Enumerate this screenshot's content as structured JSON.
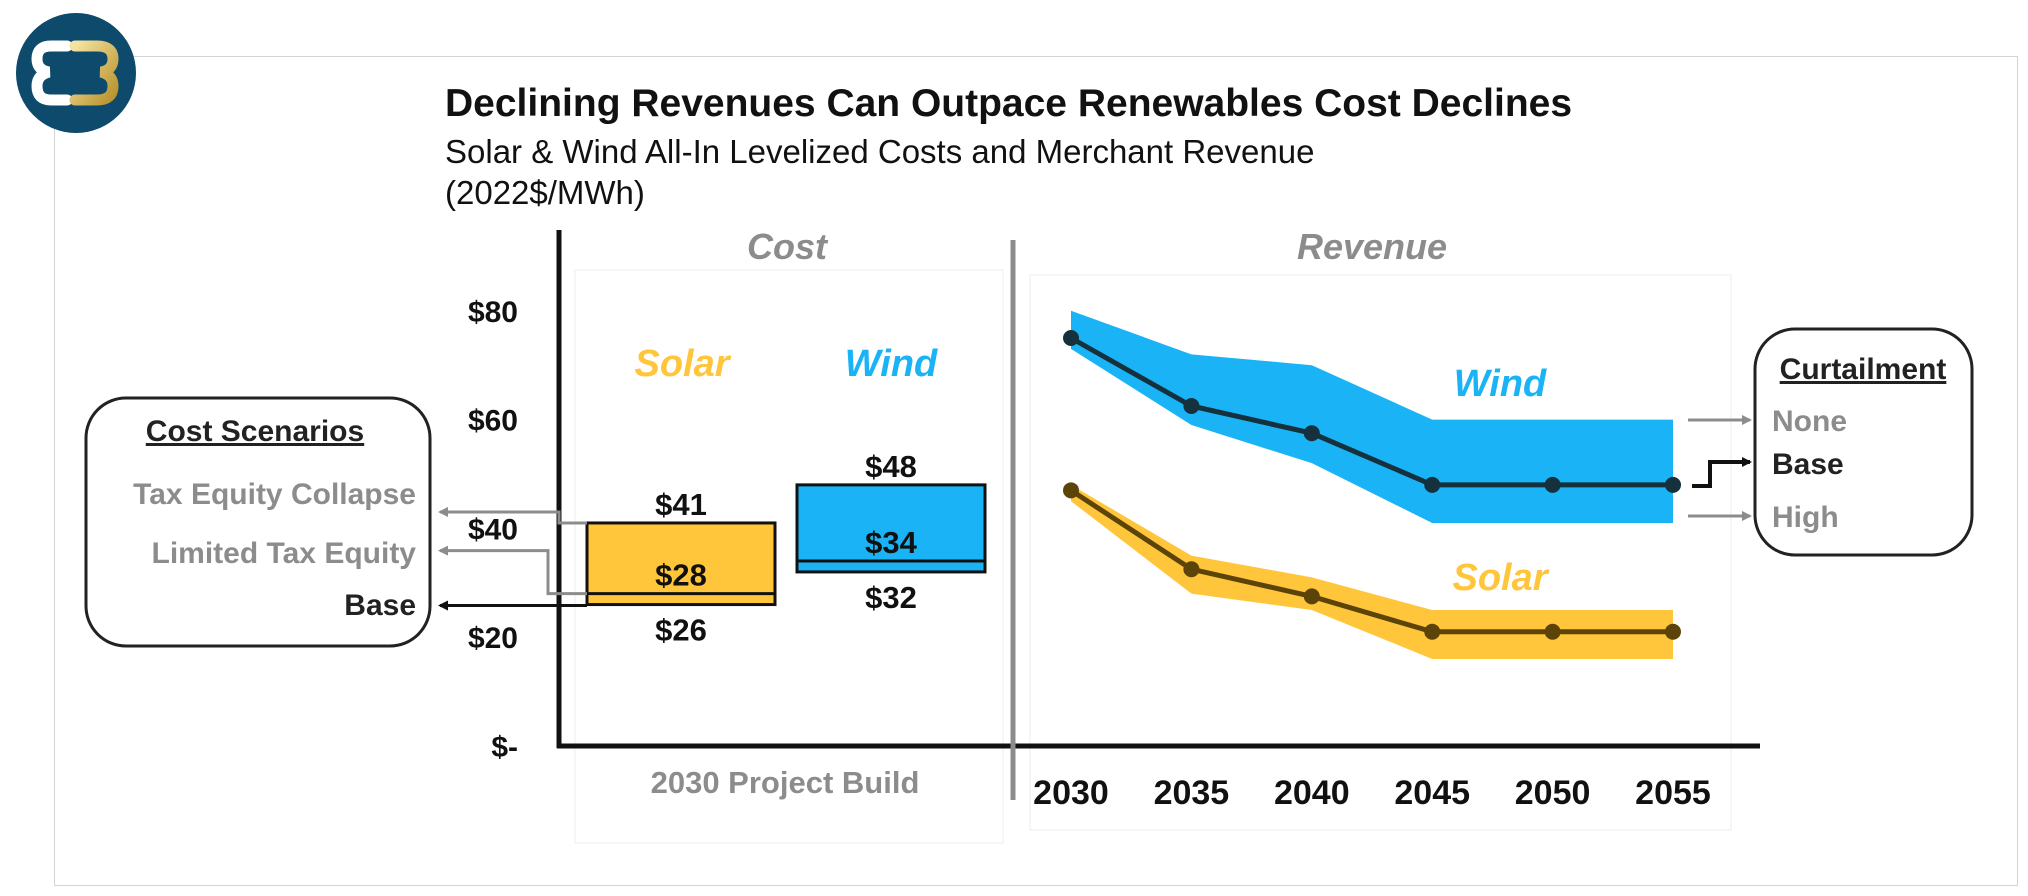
{
  "title": "Declining Revenues Can Outpace Renewables Cost Declines",
  "subtitle": "Solar & Wind All-In Levelized Costs and Merchant Revenue",
  "units": "(2022$/MWh)",
  "logo": {
    "icon": "company-logo-icon"
  },
  "colors": {
    "solar": "#FFC63B",
    "wind": "#1AB3F5",
    "solar_line": "#5C4308",
    "wind_line": "#15313D",
    "gray": "#8C8C8C"
  },
  "chart_data": [
    {
      "type": "bar",
      "panel_title": "Cost",
      "x_label": "2030 Project Build",
      "y_ticks": [
        "$-",
        "$20",
        "$40",
        "$60",
        "$80"
      ],
      "ylim": [
        0,
        80
      ],
      "series": [
        {
          "name": "Solar",
          "low": 26,
          "mid": 28,
          "high": 41,
          "labels": {
            "low": "$26",
            "mid": "$28",
            "high": "$41"
          }
        },
        {
          "name": "Wind",
          "low": 32,
          "mid": 34,
          "high": 48,
          "labels": {
            "low": "$32",
            "mid": "$34",
            "high": "$48"
          }
        }
      ]
    },
    {
      "type": "line",
      "panel_title": "Revenue",
      "x": [
        "2030",
        "2035",
        "2040",
        "2045",
        "2050",
        "2055"
      ],
      "ylim": [
        0,
        80
      ],
      "series": [
        {
          "name": "Wind",
          "values": [
            75,
            62.5,
            57.5,
            48,
            48,
            48
          ],
          "band_high": [
            80,
            72,
            70,
            60,
            60,
            60
          ],
          "band_low": [
            73,
            59,
            52,
            41,
            41,
            41
          ]
        },
        {
          "name": "Solar",
          "values": [
            47,
            32.5,
            27.5,
            21,
            21,
            21
          ],
          "band_high": [
            48,
            35,
            31,
            25,
            25,
            25
          ],
          "band_low": [
            45,
            28,
            25,
            16,
            16,
            16
          ]
        }
      ]
    }
  ],
  "cost_scenarios": {
    "heading": "Cost Scenarios",
    "items": [
      "Tax Equity Collapse",
      "Limited Tax Equity",
      "Base"
    ]
  },
  "curtailment": {
    "heading": "Curtailment",
    "items": [
      "None",
      "Base",
      "High"
    ]
  }
}
